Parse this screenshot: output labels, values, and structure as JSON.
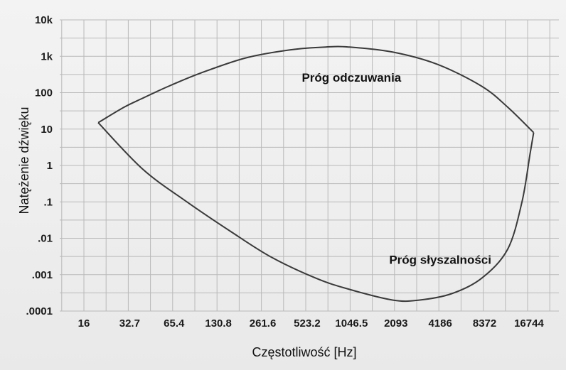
{
  "chart_data": {
    "type": "line",
    "title": "",
    "xlabel": "Częstotliwość [Hz]",
    "ylabel": "Natężenie dźwięku",
    "x_scale": "log2",
    "y_scale": "log10",
    "x_ticks": [
      16,
      32.7,
      65.4,
      130.8,
      261.6,
      523.2,
      1046.5,
      2093,
      4186,
      8372,
      16744
    ],
    "x_tick_labels": [
      "16",
      "32.7",
      "65.4",
      "130.8",
      "261.6",
      "523.2",
      "1046.5",
      "2093",
      "4186",
      "8372",
      "16744"
    ],
    "y_ticks": [
      0.0001,
      0.001,
      0.01,
      0.1,
      1,
      10,
      100,
      1000,
      10000
    ],
    "y_tick_labels": [
      ".0001",
      ".001",
      ".01",
      ".1",
      "1",
      "10",
      "100",
      "1k",
      "10k"
    ],
    "xlim": [
      12,
      32000
    ],
    "ylim": [
      0.0001,
      10000
    ],
    "grid": true,
    "series": [
      {
        "name": "Próg odczuwania",
        "x": [
          20,
          30,
          40,
          60,
          100,
          200,
          400,
          700,
          1000,
          2000,
          4000,
          8000,
          12000,
          18000
        ],
        "y": [
          15,
          40,
          70,
          150,
          350,
          900,
          1500,
          1800,
          1800,
          1300,
          600,
          150,
          40,
          8
        ]
      },
      {
        "name": "Próg słyszalności",
        "x": [
          20,
          40,
          80,
          160,
          300,
          600,
          1000,
          2000,
          3000,
          5000,
          8000,
          12000,
          15000,
          17000,
          18000
        ],
        "y": [
          15,
          0.8,
          0.1,
          0.015,
          0.003,
          0.0008,
          0.0004,
          0.0002,
          0.0002,
          0.0003,
          0.0008,
          0.005,
          0.1,
          2,
          8
        ]
      }
    ],
    "annotations": [
      {
        "text": "Próg odczuwania",
        "x": 1046.5,
        "y": 200
      },
      {
        "text": "Próg słyszalności",
        "x": 4186,
        "y": 0.002
      }
    ]
  }
}
